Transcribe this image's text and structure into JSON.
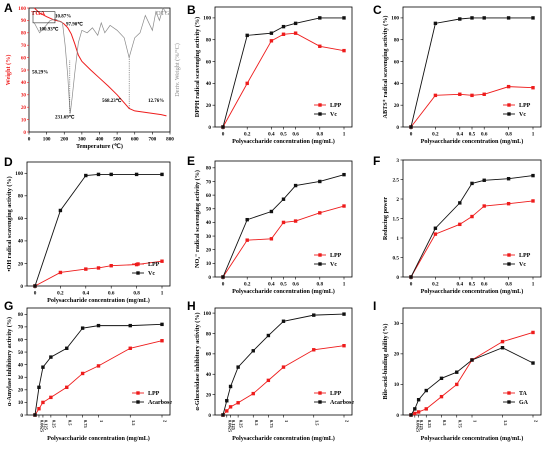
{
  "figure": {
    "background": "#ffffff",
    "black": "#111111",
    "red": "#ee1c1c",
    "gray": "#8a8a8a"
  },
  "chart_data": [
    {
      "panel": "A",
      "type": "line",
      "xlabel": "Temperature (℃)",
      "ylabel": "Weight (%)",
      "y2label": "Deriv. Weight (%/°C)",
      "xlim": [
        0,
        800
      ],
      "ylim": [
        0,
        100
      ],
      "xticks": [
        0,
        100,
        200,
        300,
        400,
        500,
        600,
        700,
        800
      ],
      "yticks": [
        0,
        10,
        20,
        30,
        40,
        50,
        60,
        70,
        80,
        90,
        100
      ],
      "series": [
        {
          "name": "TGA",
          "color": "#ee1c1c",
          "x": [
            30,
            60,
            100,
            140,
            180,
            200,
            220,
            240,
            260,
            280,
            300,
            350,
            400,
            450,
            500,
            568,
            600,
            650,
            700,
            750,
            780
          ],
          "y": [
            100,
            96,
            93,
            90.5,
            89,
            87,
            84,
            79,
            71,
            62,
            57,
            50,
            43.5,
            37,
            30,
            19,
            17,
            16,
            15,
            14,
            13
          ]
        },
        {
          "name": "DTG",
          "color": "#8a8a8a",
          "x": [
            30,
            60,
            97,
            120,
            150,
            190,
            205,
            220,
            230,
            234,
            245,
            260,
            280,
            300,
            330,
            360,
            390,
            410,
            430,
            460,
            500,
            540,
            568,
            600,
            630,
            660,
            700,
            720,
            740,
            760,
            780
          ],
          "y": [
            88,
            80,
            86,
            90,
            91,
            88,
            70,
            45,
            22,
            15,
            28,
            48,
            72,
            82,
            80,
            84,
            78,
            88,
            80,
            86,
            82,
            76,
            60,
            76,
            80,
            94,
            82,
            97,
            90,
            100,
            96
          ]
        }
      ],
      "annotations": [
        "10.87%",
        "97.90℃",
        "100.93℃",
        "58.29%",
        "231.69℃",
        "568.23℃",
        "12.76%"
      ],
      "legend": [
        "TGA",
        "DTG"
      ]
    },
    {
      "panel": "B",
      "type": "line",
      "xlabel": "Polysaccharide concentration (mg/mL)",
      "ylabel": "DPPH radical scavenging activity (%)",
      "xlim": [
        0,
        1
      ],
      "ylim": [
        0,
        110
      ],
      "xticks": [
        "0",
        "0.2",
        "0.4",
        "0.5",
        "0.6",
        "0.8",
        "1"
      ],
      "yticks": [
        0,
        20,
        40,
        60,
        80,
        100
      ],
      "x": [
        0,
        0.2,
        0.4,
        0.5,
        0.6,
        0.8,
        1
      ],
      "series": [
        {
          "name": "LPP",
          "color": "#ee1c1c",
          "values": [
            0,
            40,
            79,
            85,
            86,
            74,
            70
          ]
        },
        {
          "name": "Vc",
          "color": "#111111",
          "values": [
            0,
            84,
            86,
            92,
            95,
            100,
            100
          ]
        }
      ],
      "legend_position": "bottom-right"
    },
    {
      "panel": "C",
      "type": "line",
      "xlabel": "Polysaccharide concentration (mg/mL)",
      "ylabel": "ABTS⁺ radical scavenging activity (%)",
      "xlim": [
        0,
        1
      ],
      "ylim": [
        0,
        110
      ],
      "xticks": [
        "0",
        "0.2",
        "0.4",
        "0.5",
        "0.6",
        "0.8",
        "1"
      ],
      "yticks": [
        0,
        20,
        40,
        60,
        80,
        100
      ],
      "x": [
        0,
        0.2,
        0.4,
        0.5,
        0.6,
        0.8,
        1
      ],
      "series": [
        {
          "name": "LPP",
          "color": "#ee1c1c",
          "values": [
            0,
            29,
            30,
            29,
            30,
            37,
            36
          ]
        },
        {
          "name": "Vc",
          "color": "#111111",
          "values": [
            0,
            95,
            99,
            100,
            100,
            100,
            100
          ]
        }
      ],
      "legend_position": "bottom-right"
    },
    {
      "panel": "D",
      "type": "line",
      "xlabel": "Polysaccharide concentration (mg/mL)",
      "ylabel": "•OH radical scavenging activity (%)",
      "xlim": [
        0,
        1
      ],
      "ylim": [
        0,
        110
      ],
      "xticks": [
        "0",
        "0.2",
        "0.4",
        "0.6",
        "0.8",
        "1"
      ],
      "yticks": [
        0,
        20,
        40,
        60,
        80,
        100
      ],
      "x": [
        0,
        0.2,
        0.4,
        0.5,
        0.6,
        0.8,
        1
      ],
      "series": [
        {
          "name": "LPP",
          "color": "#ee1c1c",
          "values": [
            0,
            12,
            15,
            16,
            18,
            19,
            22
          ]
        },
        {
          "name": "Vc",
          "color": "#111111",
          "values": [
            0,
            67,
            98,
            99,
            99,
            99,
            99
          ]
        }
      ],
      "legend_position": "bottom-right"
    },
    {
      "panel": "E",
      "type": "line",
      "xlabel": "Polysaccharide concentration (mg/mL)",
      "ylabel": "NO₂⁻ radical scavenging activity (%)",
      "xlim": [
        0,
        1
      ],
      "ylim": [
        0,
        85
      ],
      "xticks": [
        "0",
        "0.2",
        "0.4",
        "0.5",
        "0.6",
        "0.8",
        "1"
      ],
      "yticks": [
        0,
        10,
        20,
        30,
        40,
        50,
        60,
        70,
        80
      ],
      "x": [
        0,
        0.2,
        0.4,
        0.5,
        0.6,
        0.8,
        1
      ],
      "series": [
        {
          "name": "LPP",
          "color": "#ee1c1c",
          "values": [
            0,
            27,
            28,
            40,
            41,
            47,
            52
          ]
        },
        {
          "name": "Vc",
          "color": "#111111",
          "values": [
            0,
            42,
            48,
            57,
            67,
            70,
            75
          ]
        }
      ],
      "legend_position": "bottom-right"
    },
    {
      "panel": "F",
      "type": "line",
      "xlabel": "Polysaccharide concentration (mg/mL)",
      "ylabel": "Reducing power",
      "xlim": [
        0,
        1
      ],
      "ylim": [
        0,
        3.0
      ],
      "xticks": [
        "0",
        "0.2",
        "0.4",
        "0.5",
        "0.6",
        "0.8",
        "1"
      ],
      "yticks": [
        0,
        0.5,
        1.0,
        1.5,
        2.0,
        2.5,
        3.0
      ],
      "x": [
        0,
        0.2,
        0.4,
        0.5,
        0.6,
        0.8,
        1
      ],
      "series": [
        {
          "name": "LPP",
          "color": "#ee1c1c",
          "values": [
            0,
            1.1,
            1.35,
            1.55,
            1.82,
            1.88,
            1.95
          ]
        },
        {
          "name": "Vc",
          "color": "#111111",
          "values": [
            0,
            1.25,
            1.9,
            2.4,
            2.48,
            2.52,
            2.6
          ]
        }
      ],
      "legend_position": "bottom-right"
    },
    {
      "panel": "G",
      "type": "line",
      "xlabel": "Polysaccharide concentration (mg/mL)",
      "ylabel": "α-Amylase inhibitory activity (%)",
      "xlim": [
        0,
        2
      ],
      "ylim": [
        0,
        85
      ],
      "xticks": [
        "0.0625",
        "0.125",
        "0.25",
        "0.5",
        "0.75",
        "1",
        "1.5",
        "2"
      ],
      "yticks": [
        0,
        10,
        20,
        30,
        40,
        50,
        60,
        70,
        80
      ],
      "x": [
        0,
        0.0625,
        0.125,
        0.25,
        0.5,
        0.75,
        1,
        1.5,
        2
      ],
      "series": [
        {
          "name": "LPP",
          "color": "#ee1c1c",
          "values": [
            0,
            5,
            10,
            14,
            22,
            33,
            39,
            53,
            59
          ]
        },
        {
          "name": "Acarbose",
          "color": "#111111",
          "values": [
            0,
            22,
            38,
            46,
            53,
            69,
            71,
            71,
            72
          ]
        }
      ],
      "legend_position": "bottom-right"
    },
    {
      "panel": "H",
      "type": "line",
      "xlabel": "Polysaccharide concentration (mg/mL)",
      "ylabel": "α-Glucosidase inhibitory activity (%)",
      "xlim": [
        0,
        2
      ],
      "ylim": [
        0,
        105
      ],
      "xticks": [
        "0.0625",
        "0.125",
        "0.25",
        "0.5",
        "0.75",
        "1",
        "1.5",
        "2"
      ],
      "yticks": [
        0,
        20,
        40,
        60,
        80,
        100
      ],
      "x": [
        0,
        0.0625,
        0.125,
        0.25,
        0.5,
        0.75,
        1,
        1.5,
        2
      ],
      "series": [
        {
          "name": "LPP",
          "color": "#ee1c1c",
          "values": [
            0,
            4,
            8,
            12,
            21,
            34,
            47,
            64,
            68
          ]
        },
        {
          "name": "Acarbose",
          "color": "#111111",
          "values": [
            0,
            14,
            28,
            47,
            63,
            78,
            92,
            98,
            99
          ]
        }
      ],
      "legend_position": "bottom-right"
    },
    {
      "panel": "I",
      "type": "line",
      "xlabel": "Polysaccharide concentration (mg/mL)",
      "ylabel": "Bile-acid-binding ability (%)",
      "xlim": [
        0,
        2
      ],
      "ylim": [
        0,
        35
      ],
      "xticks": [
        "0.0625",
        "0.125",
        "0.25",
        "0.5",
        "0.75",
        "1",
        "1.5",
        "2"
      ],
      "yticks": [
        0,
        10,
        20,
        30
      ],
      "x": [
        0,
        0.0625,
        0.125,
        0.25,
        0.5,
        0.75,
        1,
        1.5,
        2
      ],
      "series": [
        {
          "name": "TA",
          "color": "#ee1c1c",
          "values": [
            0,
            0.5,
            1,
            2,
            6,
            10,
            18,
            24,
            27
          ]
        },
        {
          "name": "GA",
          "color": "#111111",
          "values": [
            0,
            2,
            5,
            8,
            12,
            14,
            18,
            22,
            17
          ]
        }
      ],
      "legend_position": "bottom-right"
    }
  ]
}
